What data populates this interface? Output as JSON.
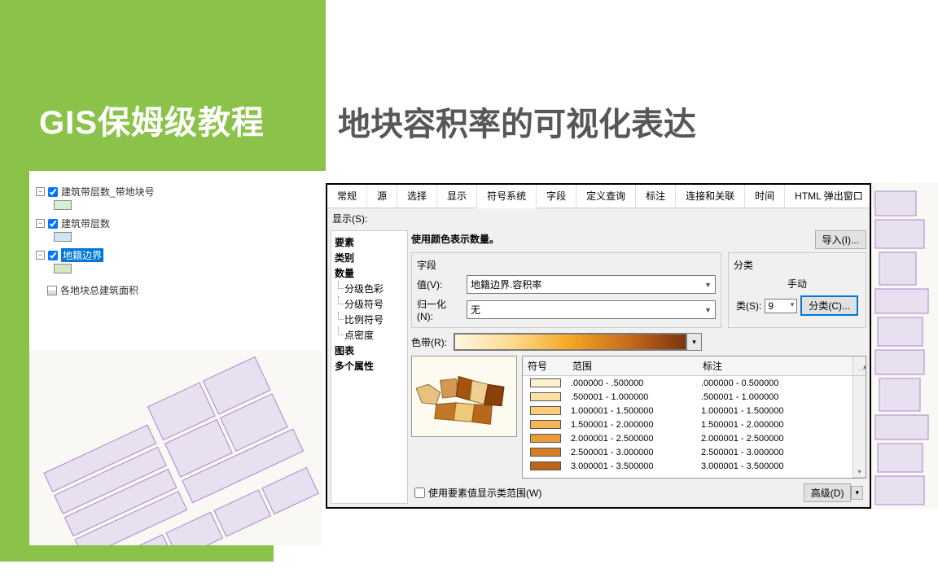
{
  "title": {
    "main": "GIS保姆级教程",
    "sub": "地块容积率的可视化表达"
  },
  "layers": {
    "items": [
      {
        "name": "建筑带层数_带地块号",
        "swatch": "#d4f0d4"
      },
      {
        "name": "建筑带层数",
        "swatch": "#cce8ee"
      },
      {
        "name": "地籍边界",
        "swatch": "#d4e8c4",
        "selected": true
      },
      {
        "name": "各地块总建筑面积",
        "type": "table"
      }
    ]
  },
  "dialog": {
    "tabs": [
      "常规",
      "源",
      "选择",
      "显示",
      "符号系统",
      "字段",
      "定义查询",
      "标注",
      "连接和关联",
      "时间",
      "HTML 弹出窗口"
    ],
    "active_tab": 4,
    "show_label": "显示(S):",
    "tree": {
      "cat1": "要素",
      "cat2": "类别",
      "cat3": "数量",
      "subs": [
        "分级色彩",
        "分级符号",
        "比例符号",
        "点密度"
      ],
      "cat4": "图表",
      "cat5": "多个属性"
    },
    "heading": "使用颜色表示数量。",
    "import_btn": "导入(I)...",
    "field_section": {
      "title": "字段",
      "value_label": "值(V):",
      "value": "地籍边界.容积率",
      "norm_label": "归一化(N):",
      "norm": "无"
    },
    "class_section": {
      "title": "分类",
      "method": "手动",
      "count_label": "类(S):",
      "count": "9",
      "btn": "分类(C)..."
    },
    "ramp_label": "色带(R):",
    "ramp_stops": [
      "#fff7e0",
      "#ffd98c",
      "#f5a623",
      "#c96a1b",
      "#7a3510"
    ],
    "ranges": {
      "h_sym": "符号",
      "h_range": "范围",
      "h_label": "标注",
      "rows": [
        {
          "color": "#fff2cc",
          "range": ".000000 - .500000",
          "label": ".000000 - 0.500000"
        },
        {
          "color": "#ffe0a3",
          "range": ".500001 - 1.000000",
          "label": ".500001 - 1.000000"
        },
        {
          "color": "#ffcc7a",
          "range": "1.000001 - 1.500000",
          "label": "1.000001 - 1.500000"
        },
        {
          "color": "#f5b556",
          "range": "1.500001 - 2.000000",
          "label": "1.500001 - 2.000000"
        },
        {
          "color": "#e89a3c",
          "range": "2.000001 - 2.500000",
          "label": "2.000001 - 2.500000"
        },
        {
          "color": "#d67f28",
          "range": "2.500001 - 3.000000",
          "label": "2.500001 - 3.000000"
        },
        {
          "color": "#bf651a",
          "range": "3.000001 - 3.500000",
          "label": "3.000001 - 3.500000"
        }
      ]
    },
    "use_feature_check": "使用要素值显示类范围(W)",
    "advanced_btn": "高级(D)"
  },
  "colors": {
    "green": "#8bc34a",
    "title_gray": "#575757",
    "map_fill": "#e8dff0",
    "map_stroke": "#a989c9",
    "map_bg": "#f5f5f0",
    "selection_blue": "#0078d7"
  }
}
